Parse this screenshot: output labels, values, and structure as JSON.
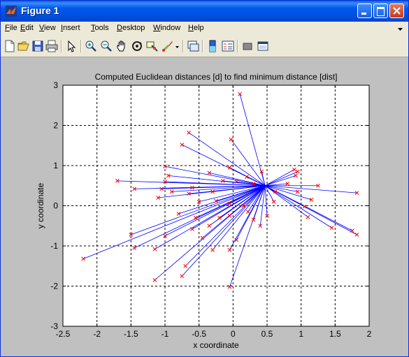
{
  "window": {
    "title": "Figure 1"
  },
  "menu": [
    {
      "label": "File",
      "accel": "F",
      "rest": "ile"
    },
    {
      "label": "Edit",
      "accel": "E",
      "rest": "dit"
    },
    {
      "label": "View",
      "accel": "V",
      "rest": "iew"
    },
    {
      "label": "Insert",
      "accel": "I",
      "rest": "nsert"
    },
    {
      "label": "Tools",
      "accel": "T",
      "rest": "ools"
    },
    {
      "label": "Desktop",
      "accel": "D",
      "rest": "esktop"
    },
    {
      "label": "Window",
      "accel": "W",
      "rest": "indow"
    },
    {
      "label": "Help",
      "accel": "H",
      "rest": "elp"
    }
  ],
  "toolbar_icons": [
    "new-figure-icon",
    "open-file-icon",
    "save-icon",
    "print-icon",
    "edit-plot-arrow-icon",
    "zoom-in-icon",
    "zoom-out-icon",
    "pan-hand-icon",
    "rotate-3d-icon",
    "data-cursor-icon",
    "brush-icon",
    "link-plot-icon",
    "colorbar-icon",
    "legend-icon",
    "hide-plot-tools-icon",
    "show-plot-tools-icon"
  ],
  "colors": {
    "line": "#0000ff",
    "marker": "#ff0000",
    "grid": "#000000",
    "titlebar": "#0058ee"
  },
  "chart_data": {
    "type": "scatter",
    "title": "Computed Euclidean distances [d] to find minimum distance [dist]",
    "xlabel": "x coordinate",
    "ylabel": "y coordinate",
    "xlim": [
      -2.5,
      2
    ],
    "ylim": [
      -3,
      3
    ],
    "xticks": [
      -2.5,
      -2,
      -1.5,
      -1,
      -0.5,
      0,
      0.5,
      1,
      1.5,
      2
    ],
    "xtick_labels": [
      "-2.5",
      "-2",
      "-1.5",
      "-1",
      "-0.5",
      "0",
      "0.5",
      "1",
      "1.5",
      "2"
    ],
    "yticks": [
      -3,
      -2,
      -1,
      0,
      1,
      2,
      3
    ],
    "ytick_labels": [
      "-3",
      "-2",
      "-1",
      "0",
      "1",
      "2",
      "3"
    ],
    "grid": true,
    "center": [
      0.47,
      0.5
    ],
    "points": [
      [
        0.1,
        2.78
      ],
      [
        -0.65,
        1.82
      ],
      [
        -0.75,
        1.52
      ],
      [
        -0.03,
        1.65
      ],
      [
        -1.0,
        0.98
      ],
      [
        -0.35,
        0.82
      ],
      [
        -0.05,
        0.95
      ],
      [
        0.42,
        0.85
      ],
      [
        0.95,
        0.85
      ],
      [
        0.9,
        0.9
      ],
      [
        1.25,
        0.5
      ],
      [
        1.82,
        0.32
      ],
      [
        -1.7,
        0.62
      ],
      [
        -1.45,
        0.42
      ],
      [
        -1.05,
        0.42
      ],
      [
        -1.1,
        0.2
      ],
      [
        -0.9,
        0.35
      ],
      [
        -0.65,
        0.3
      ],
      [
        -0.6,
        0.45
      ],
      [
        -0.3,
        0.35
      ],
      [
        -0.15,
        0.62
      ],
      [
        0.05,
        0.6
      ],
      [
        0.2,
        0.72
      ],
      [
        0.3,
        0.55
      ],
      [
        0.8,
        0.55
      ],
      [
        0.95,
        0.35
      ],
      [
        1.15,
        0.15
      ],
      [
        0.6,
        0.1
      ],
      [
        0.5,
        -0.25
      ],
      [
        0.22,
        -0.15
      ],
      [
        0.15,
        0.0
      ],
      [
        -0.05,
        0.05
      ],
      [
        -0.25,
        0.12
      ],
      [
        -0.5,
        0.1
      ],
      [
        -0.8,
        -0.2
      ],
      [
        -0.55,
        -0.3
      ],
      [
        -0.35,
        -0.5
      ],
      [
        -0.45,
        -0.8
      ],
      [
        -0.2,
        -0.3
      ],
      [
        -0.05,
        -0.25
      ],
      [
        0.3,
        -0.35
      ],
      [
        0.4,
        -0.5
      ],
      [
        1.1,
        -0.28
      ],
      [
        1.45,
        -0.55
      ],
      [
        1.75,
        -0.62
      ],
      [
        1.82,
        -0.72
      ],
      [
        -1.5,
        -0.72
      ],
      [
        -1.45,
        -1.05
      ],
      [
        -1.15,
        -1.08
      ],
      [
        -1.0,
        -0.75
      ],
      [
        -0.6,
        -0.58
      ],
      [
        -0.3,
        -1.1
      ],
      [
        -0.05,
        -1.1
      ],
      [
        0.05,
        -0.85
      ],
      [
        -0.7,
        -1.5
      ],
      [
        -0.75,
        -1.75
      ],
      [
        -1.15,
        -1.85
      ],
      [
        -0.05,
        -2.02
      ],
      [
        -2.2,
        -1.32
      ],
      [
        -0.95,
        0.75
      ],
      [
        0.62,
        0.35
      ],
      [
        1.05,
        -0.02
      ],
      [
        0.92,
        0.75
      ],
      [
        -1.0,
        0.6
      ]
    ]
  }
}
